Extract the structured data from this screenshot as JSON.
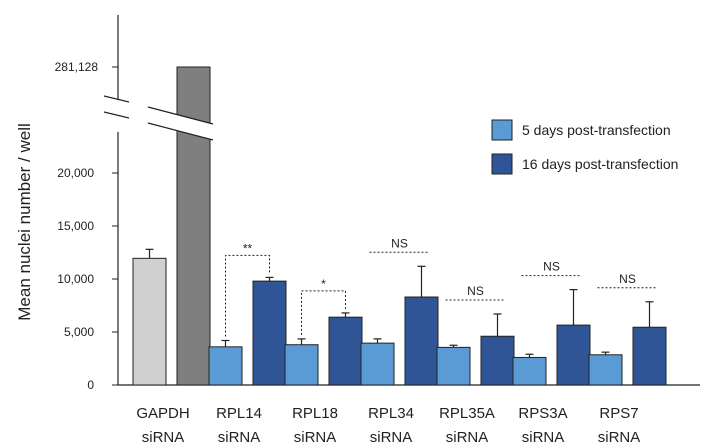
{
  "chart_data": {
    "type": "bar",
    "title": "",
    "xlabel": "",
    "ylabel": "Mean nuclei number / well",
    "ylim": [
      0,
      23000
    ],
    "axis_break": true,
    "break_top_label": "281,128",
    "y_ticks": [
      {
        "value": 0,
        "label": "0"
      },
      {
        "value": 5000,
        "label": "5,000"
      },
      {
        "value": 10000,
        "label": "10,000"
      },
      {
        "value": 15000,
        "label": "15,000"
      },
      {
        "value": 20000,
        "label": "20,000"
      }
    ],
    "categories": [
      {
        "line1": "GAPDH",
        "line2": "siRNA"
      },
      {
        "line1": "RPL14",
        "line2": "siRNA"
      },
      {
        "line1": "RPL18",
        "line2": "siRNA"
      },
      {
        "line1": "RPL34",
        "line2": "siRNA"
      },
      {
        "line1": "RPL35A",
        "line2": "siRNA"
      },
      {
        "line1": "RPS3A",
        "line2": "siRNA"
      },
      {
        "line1": "RPS7",
        "line2": "siRNA"
      }
    ],
    "series": [
      {
        "name": "5 days post-transfection",
        "color": "#5b9bd5",
        "control_color": "#d0d0d0",
        "values": [
          11950,
          3600,
          3800,
          3950,
          3550,
          2600,
          2850
        ],
        "errors": [
          850,
          600,
          550,
          400,
          200,
          300,
          250
        ]
      },
      {
        "name": "16 days post-transfection",
        "color": "#2f5597",
        "control_color": "#7f7f7f",
        "values": [
          281128,
          9800,
          6400,
          8300,
          4600,
          5650,
          5450
        ],
        "errors": [
          0,
          350,
          400,
          2900,
          2100,
          3350,
          2400
        ]
      }
    ],
    "significance": [
      {
        "category": 1,
        "label": "**",
        "bracket": true
      },
      {
        "category": 2,
        "label": "*",
        "bracket": true
      },
      {
        "category": 3,
        "label": "NS",
        "bracket": false
      },
      {
        "category": 4,
        "label": "NS",
        "bracket": false
      },
      {
        "category": 5,
        "label": "NS",
        "bracket": false
      },
      {
        "category": 6,
        "label": "NS",
        "bracket": false
      }
    ],
    "legend_position": "top-right",
    "grid": false
  }
}
